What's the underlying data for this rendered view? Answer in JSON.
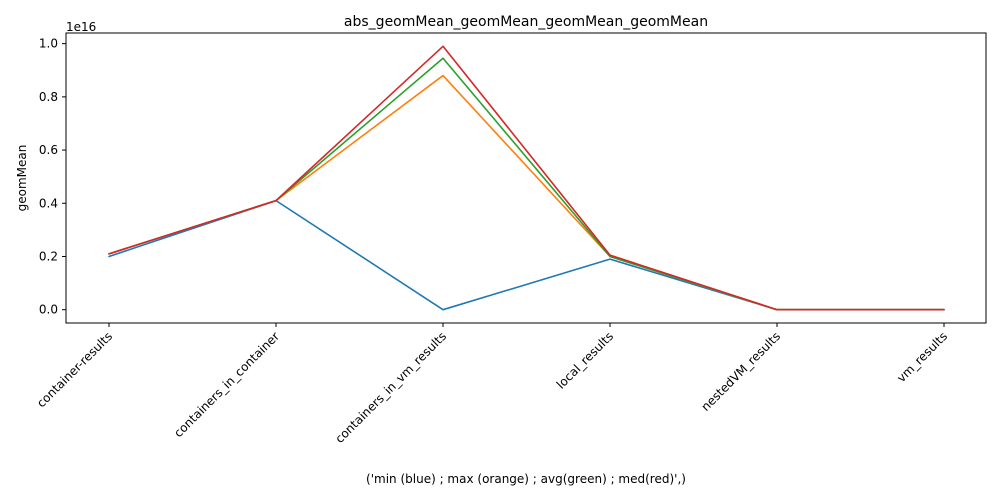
{
  "chart_data": {
    "type": "line",
    "title": "abs_geomMean_geomMean_geomMean_geomMean",
    "xlabel": "('min (blue) ; max (orange) ; avg(green) ; med(red)',)",
    "ylabel": "geomMean",
    "y_offset_label": "1e16",
    "y_scale": 1e+16,
    "ylim": [
      -0.05,
      1.04
    ],
    "grid": false,
    "legend": "none",
    "categories": [
      "container-results",
      "containers_in_container",
      "containers_in_vm_results",
      "local_results",
      "nestedVM_results",
      "vm_results"
    ],
    "y_ticks": [
      0.0,
      0.2,
      0.4,
      0.6,
      0.8,
      1.0
    ],
    "y_tick_labels": [
      "0.0",
      "0.2",
      "0.4",
      "0.6",
      "0.8",
      "1.0"
    ],
    "series": [
      {
        "color": "#1f77b4",
        "values": [
          0.2,
          0.41,
          0.0,
          0.19,
          0.0,
          0.0
        ]
      },
      {
        "color": "#ff7f0e",
        "values": [
          0.21,
          0.41,
          0.88,
          0.2,
          0.0,
          0.0
        ]
      },
      {
        "color": "#2ca02c",
        "values": [
          0.21,
          0.41,
          0.945,
          0.2,
          0.0,
          0.0
        ]
      },
      {
        "color": "#d62728",
        "values": [
          0.21,
          0.41,
          0.99,
          0.205,
          0.0,
          0.0
        ]
      }
    ]
  }
}
